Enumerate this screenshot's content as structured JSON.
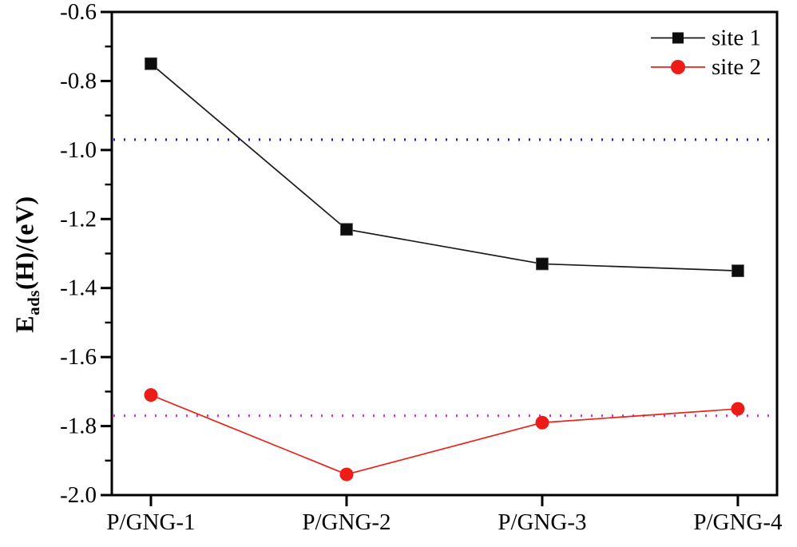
{
  "figure": {
    "background": "#ffffff",
    "frame_color": "#000000"
  },
  "chart_data": {
    "type": "line",
    "title": "",
    "categories": [
      "P/GNG-1",
      "P/GNG-2",
      "P/GNG-3",
      "P/GNG-4"
    ],
    "series": [
      {
        "name": "site 1",
        "color": "#1a1a1a",
        "marker": "square",
        "marker_color": "#0d0d0d",
        "values": [
          -0.75,
          -1.23,
          -1.33,
          -1.35
        ]
      },
      {
        "name": "site 2",
        "color": "#e8231a",
        "marker": "circle",
        "marker_color": "#ee1c16",
        "values": [
          -1.71,
          -1.94,
          -1.79,
          -1.75
        ]
      }
    ],
    "reference_lines": [
      {
        "value": -0.97,
        "color": "#2323c8",
        "style": "dotted"
      },
      {
        "value": -1.77,
        "color": "#ee26ee",
        "style": "dotted"
      }
    ],
    "xlabel": "",
    "ylabel": "E_ads(H)/(eV)",
    "ylabel_parts": {
      "main": "E",
      "sub": "ads",
      "rest": "(H)/(eV)"
    },
    "ylim": [
      -2.0,
      -0.6
    ],
    "yticks": [
      "-0.6",
      "-0.8",
      "-1.0",
      "-1.2",
      "-1.4",
      "-1.6",
      "-1.8",
      "-2.0"
    ],
    "ytick_minor_step": 0.1,
    "grid": false,
    "legend": {
      "position": "top-right",
      "entries": [
        "site 1",
        "site 2"
      ]
    }
  }
}
